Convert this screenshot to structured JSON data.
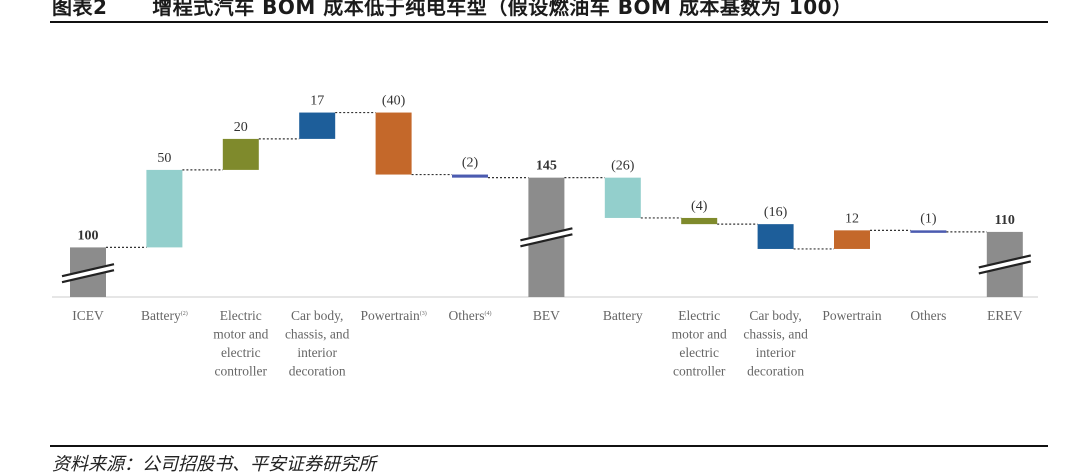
{
  "header": {
    "figure_label": "图表2",
    "title": "增程式汽车 BOM 成本低于纯电车型（假设燃油车 BOM 成本基数为 100）"
  },
  "footer": {
    "source": "资料来源：公司招股书、平安证券研究所"
  },
  "chart_data": {
    "type": "bar",
    "subtype": "waterfall",
    "ylim": [
      68,
      175
    ],
    "axis_break_on_totals": true,
    "grid": false,
    "categories": [
      {
        "lines": [
          "ICEV"
        ]
      },
      {
        "lines": [
          "Battery"
        ],
        "sup": "(2)"
      },
      {
        "lines": [
          "Electric",
          "motor and",
          "electric",
          "controller"
        ]
      },
      {
        "lines": [
          "Car body,",
          "chassis, and",
          "interior",
          "decoration"
        ]
      },
      {
        "lines": [
          "Powertrain"
        ],
        "sup": "(3)"
      },
      {
        "lines": [
          "Others"
        ],
        "sup": "(4)"
      },
      {
        "lines": [
          "BEV"
        ]
      },
      {
        "lines": [
          "Battery"
        ]
      },
      {
        "lines": [
          "Electric",
          "motor and",
          "electric",
          "controller"
        ]
      },
      {
        "lines": [
          "Car body,",
          "chassis, and",
          "interior",
          "decoration"
        ]
      },
      {
        "lines": [
          "Powertrain"
        ]
      },
      {
        "lines": [
          "Others"
        ]
      },
      {
        "lines": [
          "EREV"
        ]
      }
    ],
    "values": [
      100,
      50,
      20,
      17,
      -40,
      -2,
      145,
      -26,
      -4,
      -16,
      12,
      -1,
      110
    ],
    "kinds": [
      "total",
      "delta",
      "delta",
      "delta",
      "delta",
      "delta",
      "total",
      "delta",
      "delta",
      "delta",
      "delta",
      "delta",
      "total"
    ],
    "value_labels": [
      "100",
      "50",
      "20",
      "17",
      "(40)",
      "(2)",
      "145",
      "(26)",
      "(4)",
      "(16)",
      "12",
      "(1)",
      "110"
    ],
    "colors": [
      "#8c8c8c",
      "#93cfcc",
      "#7f8a2c",
      "#1d5e9a",
      "#c4682a",
      "#4b5bb0",
      "#8c8c8c",
      "#93cfcc",
      "#7f8a2c",
      "#1d5e9a",
      "#c4682a",
      "#4b5bb0",
      "#8c8c8c"
    ]
  }
}
